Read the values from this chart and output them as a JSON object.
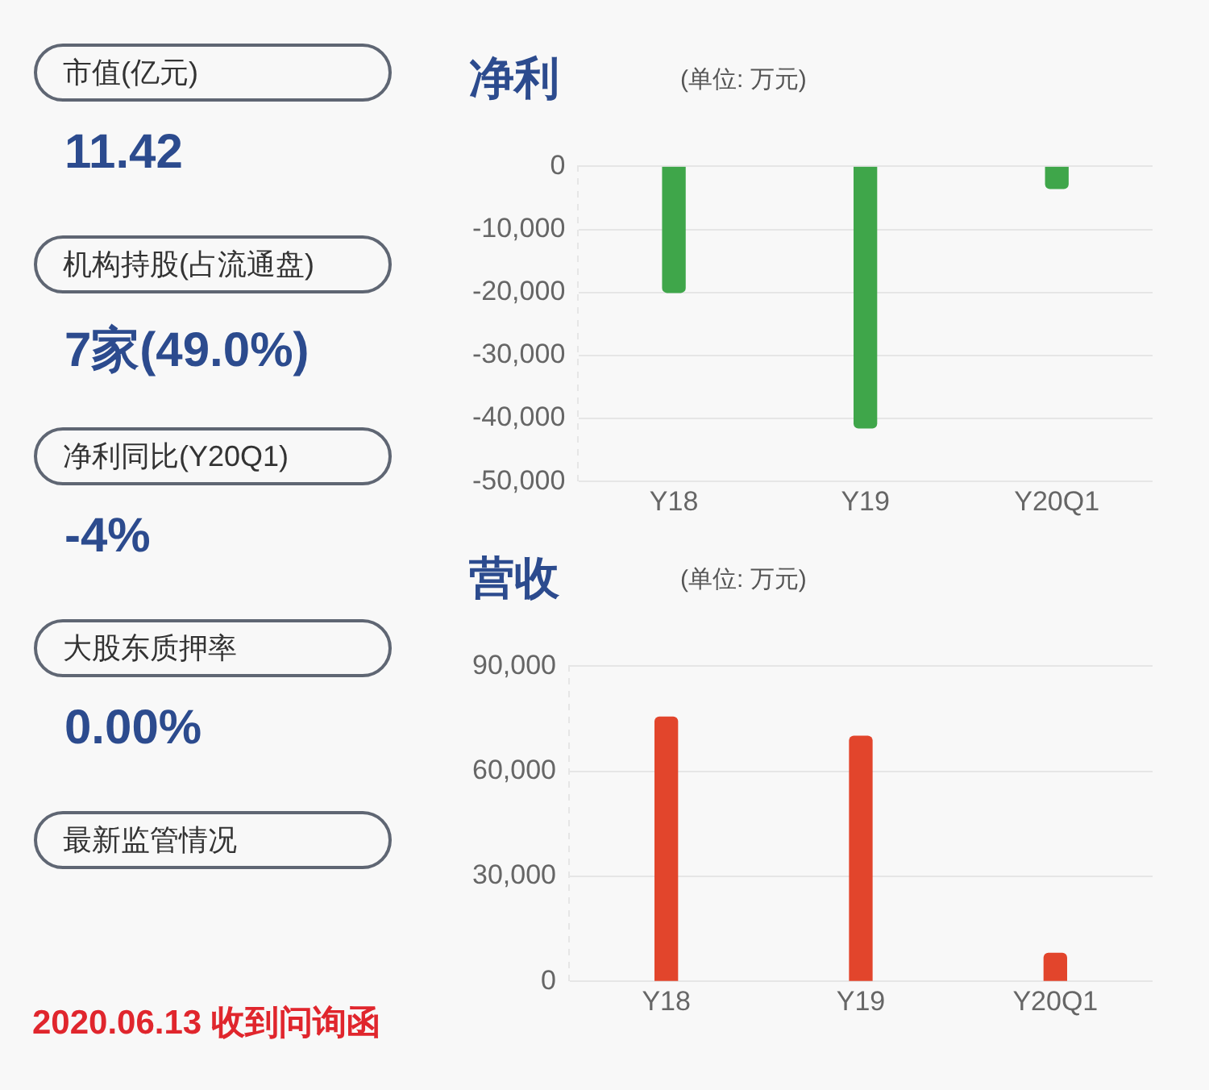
{
  "chart_data": [
    {
      "type": "other",
      "annotations": [
        "市值(亿元)",
        "11.42",
        "机构持股(占流通盘)",
        "7家(49.0%)",
        "净利同比(Y20Q1)",
        "-4%",
        "大股东质押率",
        "0.00%",
        "最新监管情况",
        "2020.06.13 收到问询函"
      ]
    },
    {
      "type": "bar",
      "title": "净利",
      "subtitle": "(单位: 万元)",
      "categories": [
        "Y18",
        "Y19",
        "Y20Q1"
      ],
      "values": [
        -20000,
        -41500,
        -3500
      ],
      "color": "#3fa64a",
      "ylim": [
        -50000,
        0
      ],
      "yticks": [
        {
          "value": 0,
          "label": "0"
        },
        {
          "value": -10000,
          "label": "-10,000"
        },
        {
          "value": -20000,
          "label": "-20,000"
        },
        {
          "value": -30000,
          "label": "-30,000"
        },
        {
          "value": -40000,
          "label": "-40,000"
        },
        {
          "value": -50000,
          "label": "-50,000"
        }
      ],
      "grid": "y",
      "legend": false
    },
    {
      "type": "bar",
      "title": "营收",
      "subtitle": "(单位: 万元)",
      "categories": [
        "Y18",
        "Y19",
        "Y20Q1"
      ],
      "values": [
        75500,
        70000,
        8000
      ],
      "color": "#e2452c",
      "ylim": [
        0,
        90000
      ],
      "yticks": [
        {
          "value": 0,
          "label": "0"
        },
        {
          "value": 30000,
          "label": "30,000"
        },
        {
          "value": 60000,
          "label": "60,000"
        },
        {
          "value": 90000,
          "label": "90,000"
        }
      ],
      "grid": "y",
      "legend": false
    }
  ]
}
